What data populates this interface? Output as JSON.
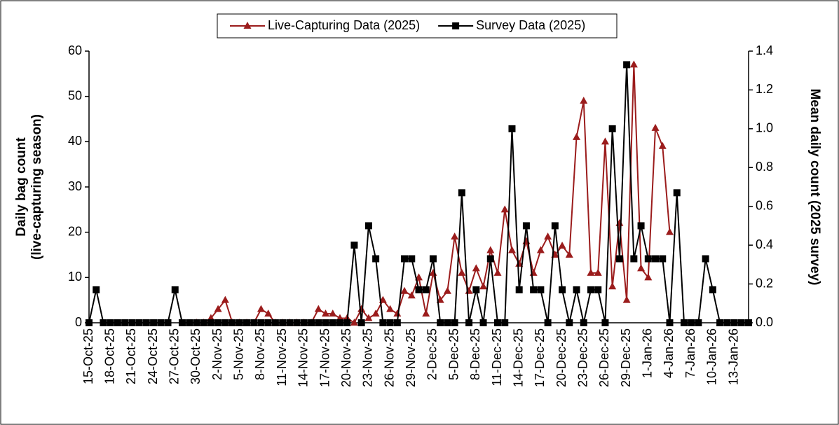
{
  "chart_data": {
    "type": "line",
    "legend": "top",
    "left_axis_label": "Daily bag count\n(live-capturing season)",
    "right_axis_label": "Mean daily count (2025 survey)",
    "categories": [
      "15-Oct-25",
      null,
      null,
      "18-Oct-25",
      null,
      null,
      "21-Oct-25",
      null,
      null,
      "24-Oct-25",
      null,
      null,
      "27-Oct-25",
      null,
      null,
      "30-Oct-25",
      null,
      null,
      "2-Nov-25",
      null,
      null,
      "5-Nov-25",
      null,
      null,
      "8-Nov-25",
      null,
      null,
      "11-Nov-25",
      null,
      null,
      "14-Nov-25",
      null,
      null,
      "17-Nov-25",
      null,
      null,
      "20-Nov-25",
      null,
      null,
      "23-Nov-25",
      null,
      null,
      "26-Nov-25",
      null,
      null,
      "29-Nov-25",
      null,
      null,
      "2-Dec-25",
      null,
      null,
      "5-Dec-25",
      null,
      null,
      "8-Dec-25",
      null,
      null,
      "11-Dec-25",
      null,
      null,
      "14-Dec-25",
      null,
      null,
      "17-Dec-25",
      null,
      null,
      "20-Dec-25",
      null,
      null,
      "23-Dec-25",
      null,
      null,
      "26-Dec-25",
      null,
      null,
      "29-Dec-25",
      null,
      null,
      "1-Jan-26",
      null,
      null,
      "4-Jan-26",
      null,
      null,
      "7-Jan-26",
      null,
      null,
      "10-Jan-26",
      null,
      null,
      "13-Jan-26",
      null,
      null
    ],
    "series": [
      {
        "name": "Live-Capturing Data (2025)",
        "color": "#9b1c1c",
        "marker": "triangle",
        "values": [
          null,
          null,
          null,
          null,
          null,
          null,
          null,
          null,
          null,
          null,
          null,
          null,
          null,
          null,
          null,
          0,
          0,
          1,
          3,
          5,
          0,
          0,
          0,
          0,
          3,
          2,
          0,
          0,
          0,
          0,
          0,
          0,
          3,
          2,
          2,
          1,
          1,
          0,
          3,
          1,
          2,
          5,
          3,
          2,
          7,
          6,
          10,
          2,
          11,
          5,
          7,
          19,
          11,
          7,
          12,
          8,
          16,
          11,
          25,
          16,
          13,
          18,
          11,
          16,
          19,
          15,
          17,
          15,
          41,
          49,
          11,
          11,
          40,
          8,
          22,
          5,
          57,
          12,
          10,
          43,
          39,
          20,
          null,
          null,
          null,
          null,
          null,
          null,
          null,
          null,
          null,
          null,
          null
        ]
      },
      {
        "name": "Survey Data (2025)",
        "color": "#000000",
        "marker": "square",
        "axis": "y2",
        "values": [
          0,
          0.17,
          0,
          0,
          0,
          0,
          0,
          0,
          0,
          0,
          0,
          0,
          0.17,
          0,
          0,
          0,
          0,
          0,
          0,
          0,
          0,
          0,
          0,
          0,
          0,
          0,
          0,
          0,
          0,
          0,
          0,
          0,
          0,
          0,
          0,
          0,
          0,
          0.4,
          0,
          0.5,
          0.33,
          0,
          0,
          0,
          0.33,
          0.33,
          0.17,
          0.17,
          0.33,
          0,
          0,
          0,
          0.67,
          0,
          0.17,
          0,
          0.33,
          0,
          0,
          1.0,
          0.17,
          0.5,
          0.17,
          0.17,
          0,
          0.5,
          0.17,
          0,
          0.17,
          0,
          0.17,
          0.17,
          0,
          1.0,
          0.33,
          1.33,
          0.33,
          0.5,
          0.33,
          0.33,
          0.33,
          0,
          0.67,
          0,
          0,
          0,
          0.33,
          0.17,
          0,
          0,
          0,
          0,
          0
        ]
      }
    ],
    "ylim": [
      0,
      60
    ],
    "yticks": [
      0,
      10,
      20,
      30,
      40,
      50,
      60
    ],
    "y2lim": [
      0,
      1.4
    ],
    "y2ticks": [
      {
        "value": 0,
        "label": "0.0"
      },
      0.2,
      0.4,
      0.6,
      0.8,
      {
        "value": 1,
        "label": "1.0"
      },
      1.2,
      1.4
    ],
    "grid": false
  }
}
